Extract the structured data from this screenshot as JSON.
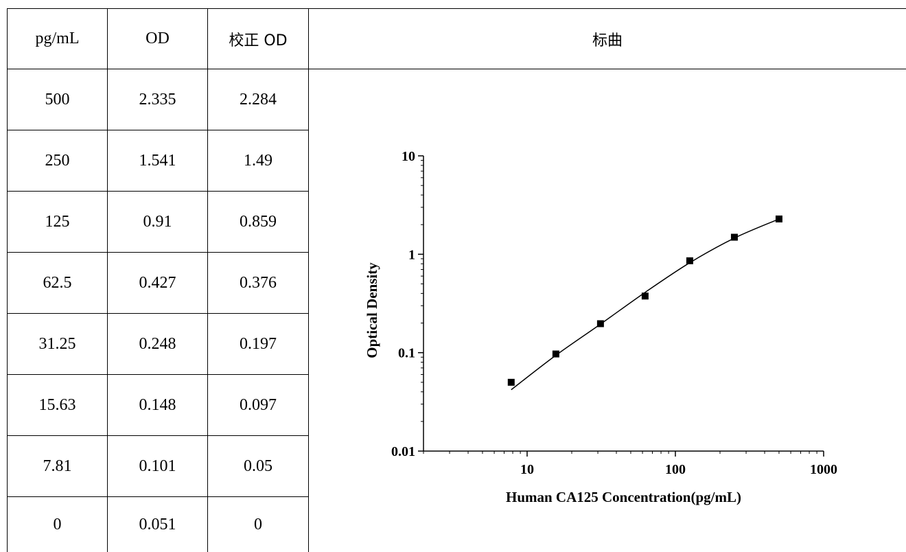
{
  "table": {
    "headers": [
      "pg/mL",
      "OD",
      "校正 OD"
    ],
    "rows": [
      [
        "500",
        "2.335",
        "2.284"
      ],
      [
        "250",
        "1.541",
        "1.49"
      ],
      [
        "125",
        "0.91",
        "0.859"
      ],
      [
        "62.5",
        "0.427",
        "0.376"
      ],
      [
        "31.25",
        "0.248",
        "0.197"
      ],
      [
        "15.63",
        "0.148",
        "0.097"
      ],
      [
        "7.81",
        "0.101",
        "0.05"
      ],
      [
        "0",
        "0.051",
        "0"
      ]
    ],
    "chart_header": "标曲"
  },
  "chart_data": {
    "type": "scatter",
    "title": "",
    "xlabel": "Human CA125 Concentration(pg/mL)",
    "ylabel": "Optical Density",
    "x_scale": "log",
    "y_scale": "log",
    "xlim": [
      2,
      1000
    ],
    "ylim": [
      0.01,
      10
    ],
    "x_tick_labels": [
      "10",
      "100",
      "1000"
    ],
    "y_tick_labels": [
      "0.01",
      "0.1",
      "1",
      "10"
    ],
    "series": [
      {
        "points": [
          {
            "x": 7.81,
            "y": 0.05
          },
          {
            "x": 15.63,
            "y": 0.097
          },
          {
            "x": 31.25,
            "y": 0.197
          },
          {
            "x": 62.5,
            "y": 0.376
          },
          {
            "x": 125,
            "y": 0.859
          },
          {
            "x": 250,
            "y": 1.49
          },
          {
            "x": 500,
            "y": 2.284
          }
        ],
        "marker": "square",
        "color": "#000000"
      }
    ],
    "fit_curve": [
      {
        "x": 7.81,
        "y": 0.042
      },
      {
        "x": 15.63,
        "y": 0.094
      },
      {
        "x": 31.25,
        "y": 0.195
      },
      {
        "x": 62.5,
        "y": 0.41
      },
      {
        "x": 125,
        "y": 0.82
      },
      {
        "x": 250,
        "y": 1.46
      },
      {
        "x": 500,
        "y": 2.28
      }
    ],
    "grid": false,
    "legend": "none"
  }
}
